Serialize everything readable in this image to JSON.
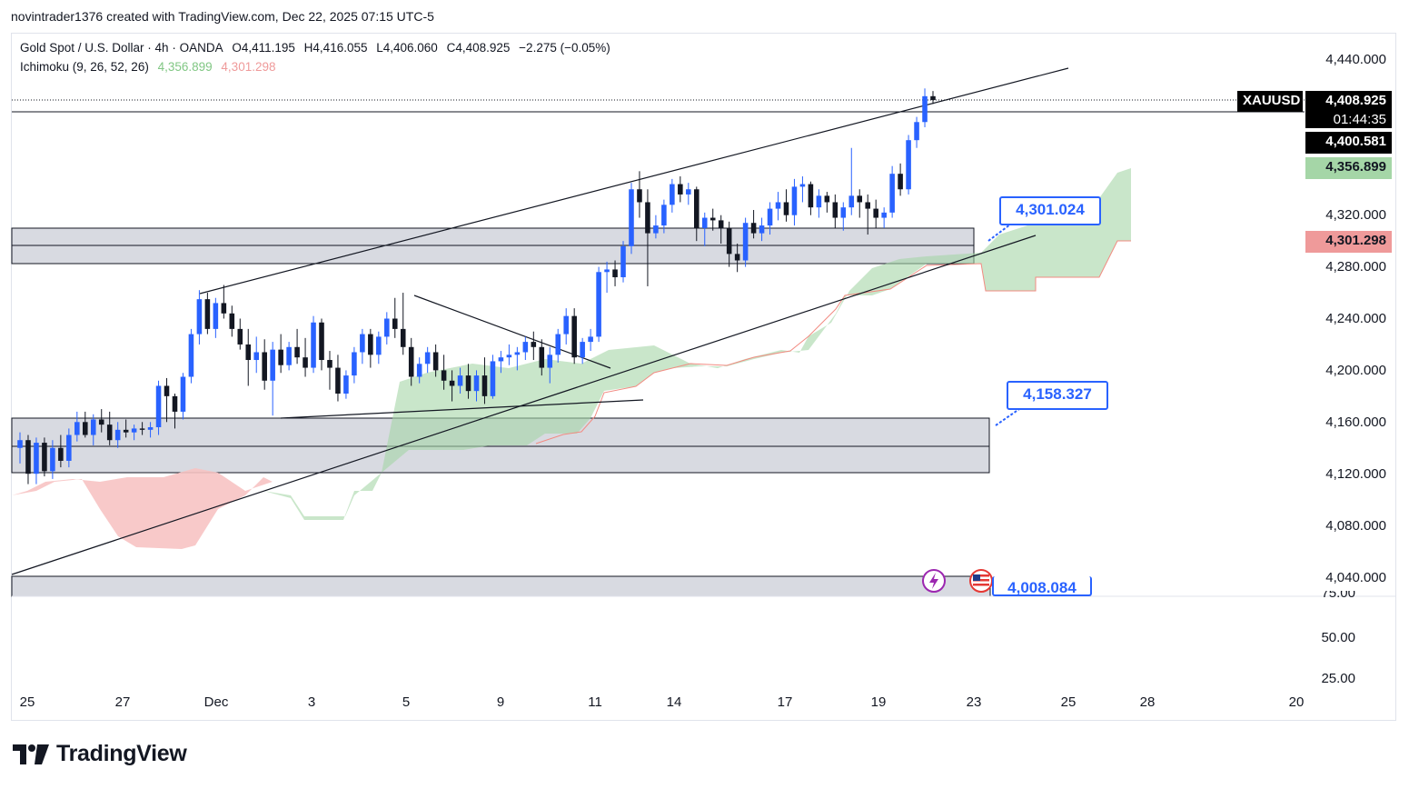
{
  "header": {
    "credit": "novintrader1376 created with TradingView.com, Dec 22, 2025 07:15 UTC-5"
  },
  "legend": {
    "symbol_line": "Gold Spot / U.S. Dollar · 4h · OANDA",
    "open": "O4,411.195",
    "high": "H4,416.055",
    "low": "L4,406.060",
    "close": "C4,408.925",
    "change": "−2.275 (−0.05%)",
    "indicator": "Ichimoku (9, 26, 52, 26)",
    "ich_a": "4,356.899",
    "ich_b": "4,301.298"
  },
  "price_badges": {
    "symbol": "XAUUSD",
    "last": "4,408.925",
    "countdown": "01:44:35",
    "line": "4,400.581",
    "ich_a": "4,356.899",
    "ich_b": "4,301.298"
  },
  "callouts": {
    "upper": "4,301.024",
    "middle": "4,158.327",
    "lower": "4,008.084"
  },
  "y_axis": [
    "4,440.000",
    "4,320.000",
    "4,280.000",
    "4,240.000",
    "4,200.000",
    "4,160.000",
    "4,120.000",
    "4,080.000",
    "4,040.000"
  ],
  "osc_axis": [
    "75.00",
    "50.00",
    "25.00"
  ],
  "x_axis": [
    "25",
    "27",
    "Dec",
    "3",
    "5",
    "9",
    "11",
    "14",
    "17",
    "19",
    "23",
    "25",
    "28",
    "20"
  ],
  "brand": "TradingView",
  "colors": {
    "up": "#2962ff",
    "down": "#131722",
    "cloud_bull": "#a5d6a7",
    "cloud_bear": "#f7c3c3",
    "zone": "#d1d4dc",
    "accent": "#2962ff"
  },
  "chart_data": {
    "type": "candlestick",
    "title": "Gold Spot / U.S. Dollar · 4h · OANDA",
    "ylim": [
      4010,
      4460
    ],
    "x_range": [
      "Nov 25",
      "Dec 20 (next year label '20')"
    ],
    "candles": [
      [
        4140,
        4152,
        4128,
        4146
      ],
      [
        4146,
        4150,
        4112,
        4120
      ],
      [
        4120,
        4148,
        4112,
        4144
      ],
      [
        4144,
        4148,
        4118,
        4122
      ],
      [
        4122,
        4146,
        4116,
        4140
      ],
      [
        4140,
        4150,
        4125,
        4130
      ],
      [
        4130,
        4155,
        4125,
        4150
      ],
      [
        4150,
        4168,
        4145,
        4160
      ],
      [
        4160,
        4168,
        4148,
        4150
      ],
      [
        4150,
        4166,
        4142,
        4162
      ],
      [
        4162,
        4170,
        4152,
        4158
      ],
      [
        4158,
        4168,
        4142,
        4146
      ],
      [
        4146,
        4160,
        4140,
        4154
      ],
      [
        4154,
        4162,
        4148,
        4152
      ],
      [
        4152,
        4158,
        4146,
        4155
      ],
      [
        4155,
        4160,
        4150,
        4154
      ],
      [
        4154,
        4160,
        4148,
        4156
      ],
      [
        4156,
        4192,
        4150,
        4188
      ],
      [
        4188,
        4194,
        4160,
        4180
      ],
      [
        4180,
        4182,
        4155,
        4168
      ],
      [
        4168,
        4198,
        4162,
        4195
      ],
      [
        4195,
        4232,
        4190,
        4228
      ],
      [
        4228,
        4262,
        4220,
        4255
      ],
      [
        4255,
        4260,
        4228,
        4232
      ],
      [
        4232,
        4256,
        4225,
        4252
      ],
      [
        4252,
        4266,
        4240,
        4244
      ],
      [
        4244,
        4250,
        4226,
        4232
      ],
      [
        4232,
        4240,
        4216,
        4220
      ],
      [
        4220,
        4232,
        4188,
        4208
      ],
      [
        4208,
        4226,
        4198,
        4214
      ],
      [
        4214,
        4224,
        4185,
        4192
      ],
      [
        4192,
        4222,
        4165,
        4216
      ],
      [
        4216,
        4228,
        4198,
        4204
      ],
      [
        4204,
        4222,
        4200,
        4218
      ],
      [
        4218,
        4232,
        4205,
        4210
      ],
      [
        4210,
        4225,
        4195,
        4202
      ],
      [
        4202,
        4242,
        4198,
        4237
      ],
      [
        4237,
        4240,
        4200,
        4208
      ],
      [
        4208,
        4215,
        4185,
        4202
      ],
      [
        4202,
        4212,
        4176,
        4182
      ],
      [
        4182,
        4200,
        4178,
        4196
      ],
      [
        4196,
        4218,
        4190,
        4214
      ],
      [
        4214,
        4232,
        4205,
        4228
      ],
      [
        4228,
        4232,
        4202,
        4212
      ],
      [
        4212,
        4230,
        4205,
        4226
      ],
      [
        4226,
        4245,
        4220,
        4240
      ],
      [
        4240,
        4256,
        4225,
        4232
      ],
      [
        4232,
        4260,
        4212,
        4218
      ],
      [
        4218,
        4225,
        4188,
        4195
      ],
      [
        4195,
        4210,
        4190,
        4205
      ],
      [
        4205,
        4218,
        4198,
        4214
      ],
      [
        4214,
        4220,
        4195,
        4200
      ],
      [
        4200,
        4212,
        4185,
        4192
      ],
      [
        4192,
        4200,
        4176,
        4188
      ],
      [
        4188,
        4202,
        4182,
        4196
      ],
      [
        4196,
        4205,
        4178,
        4184
      ],
      [
        4184,
        4200,
        4176,
        4196
      ],
      [
        4196,
        4210,
        4174,
        4180
      ],
      [
        4180,
        4212,
        4178,
        4207
      ],
      [
        4207,
        4215,
        4198,
        4210
      ],
      [
        4210,
        4220,
        4204,
        4212
      ],
      [
        4212,
        4218,
        4200,
        4214
      ],
      [
        4214,
        4226,
        4208,
        4222
      ],
      [
        4222,
        4230,
        4208,
        4218
      ],
      [
        4218,
        4224,
        4196,
        4202
      ],
      [
        4202,
        4218,
        4190,
        4212
      ],
      [
        4212,
        4232,
        4206,
        4228
      ],
      [
        4228,
        4248,
        4220,
        4242
      ],
      [
        4242,
        4248,
        4205,
        4210
      ],
      [
        4210,
        4225,
        4205,
        4222
      ],
      [
        4222,
        4232,
        4215,
        4226
      ],
      [
        4226,
        4280,
        4222,
        4276
      ],
      [
        4276,
        4284,
        4260,
        4278
      ],
      [
        4278,
        4285,
        4265,
        4272
      ],
      [
        4272,
        4300,
        4268,
        4296
      ],
      [
        4296,
        4345,
        4290,
        4340
      ],
      [
        4340,
        4354,
        4318,
        4330
      ],
      [
        4330,
        4340,
        4265,
        4306
      ],
      [
        4306,
        4320,
        4302,
        4312
      ],
      [
        4312,
        4332,
        4306,
        4328
      ],
      [
        4328,
        4348,
        4322,
        4344
      ],
      [
        4344,
        4350,
        4330,
        4336
      ],
      [
        4336,
        4345,
        4328,
        4340
      ],
      [
        4340,
        4342,
        4300,
        4310
      ],
      [
        4310,
        4322,
        4296,
        4318
      ],
      [
        4318,
        4325,
        4308,
        4316
      ],
      [
        4316,
        4320,
        4298,
        4310
      ],
      [
        4310,
        4315,
        4280,
        4290
      ],
      [
        4290,
        4298,
        4276,
        4285
      ],
      [
        4285,
        4318,
        4280,
        4314
      ],
      [
        4314,
        4324,
        4302,
        4306
      ],
      [
        4306,
        4318,
        4300,
        4312
      ],
      [
        4312,
        4330,
        4305,
        4325
      ],
      [
        4325,
        4338,
        4316,
        4330
      ],
      [
        4330,
        4340,
        4315,
        4320
      ],
      [
        4320,
        4348,
        4312,
        4342
      ],
      [
        4342,
        4350,
        4330,
        4344
      ],
      [
        4344,
        4346,
        4320,
        4326
      ],
      [
        4326,
        4340,
        4318,
        4335
      ],
      [
        4335,
        4338,
        4322,
        4330
      ],
      [
        4330,
        4336,
        4310,
        4318
      ],
      [
        4318,
        4330,
        4308,
        4326
      ],
      [
        4326,
        4372,
        4320,
        4335
      ],
      [
        4335,
        4340,
        4318,
        4330
      ],
      [
        4330,
        4336,
        4305,
        4325
      ],
      [
        4325,
        4332,
        4310,
        4318
      ],
      [
        4318,
        4326,
        4310,
        4322
      ],
      [
        4322,
        4358,
        4318,
        4352
      ],
      [
        4352,
        4360,
        4335,
        4340
      ],
      [
        4340,
        4382,
        4336,
        4378
      ],
      [
        4378,
        4396,
        4372,
        4392
      ],
      [
        4392,
        4418,
        4388,
        4412
      ],
      [
        4412,
        4416,
        4406,
        4409
      ]
    ],
    "tenkan_kijun_omitted": true,
    "ichimoku_cloud": "senkou span A/B cloud, bullish green from early Dec, bearish red late Nov",
    "zones": [
      [
        4280,
        4308
      ],
      [
        4120,
        4163
      ],
      [
        4010,
        4043
      ]
    ],
    "trendlines": [
      "ascending channel upper",
      "ascending support from 4040",
      "Dec 5 – Dec 11 descending line",
      "Dec 2 base line"
    ]
  }
}
